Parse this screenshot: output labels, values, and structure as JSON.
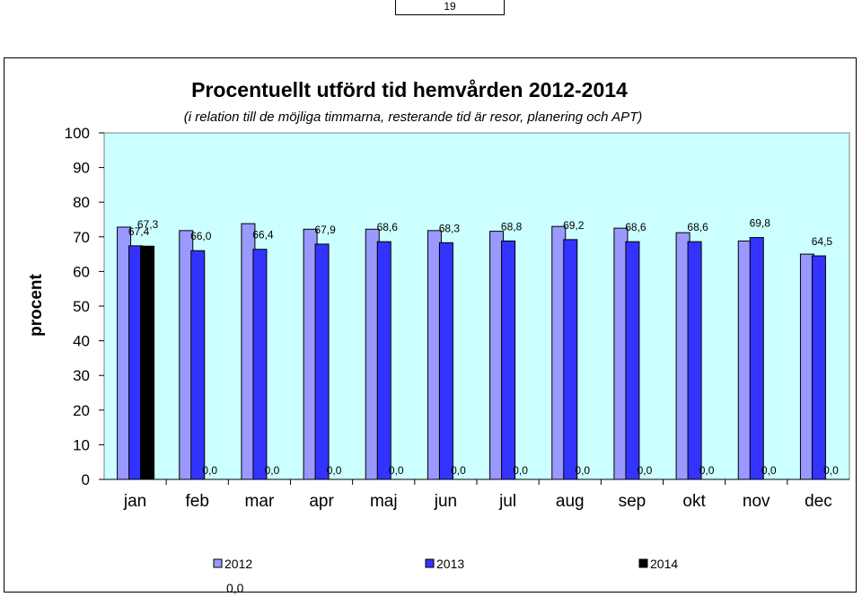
{
  "page_number": "19",
  "chart_data": {
    "type": "bar",
    "title": "Procentuellt utförd tid hemvården 2012-2014",
    "subtitle": "(i relation till de möjliga timmarna, resterande tid är resor, planering och APT)",
    "xlabel": "",
    "ylabel": "procent",
    "ylim": [
      0,
      100
    ],
    "yticks": [
      "0",
      "10",
      "20",
      "30",
      "40",
      "50",
      "60",
      "70",
      "80",
      "90",
      "100"
    ],
    "categories": [
      "jan",
      "feb",
      "mar",
      "apr",
      "maj",
      "jun",
      "jul",
      "aug",
      "sep",
      "okt",
      "nov",
      "dec"
    ],
    "grid": false,
    "legend_position": "bottom",
    "series": [
      {
        "name": "2012",
        "color": "#9999ff",
        "values": [
          72.8,
          71.8,
          73.8,
          72.2,
          72.2,
          71.8,
          71.6,
          73.0,
          72.5,
          71.2,
          68.8,
          65.0
        ]
      },
      {
        "name": "2013",
        "color": "#3333ff",
        "values": [
          67.4,
          66.0,
          66.4,
          67.9,
          68.6,
          68.3,
          68.8,
          69.2,
          68.6,
          68.6,
          69.8,
          64.5
        ]
      },
      {
        "name": "2014",
        "color": "#000000",
        "values": [
          67.3,
          0.0,
          0.0,
          0.0,
          0.0,
          0.0,
          0.0,
          0.0,
          0.0,
          0.0,
          0.0,
          0.0
        ]
      }
    ],
    "data_labels_2013": [
      "67,4",
      "66,0",
      "66,4",
      "67,9",
      "68,6",
      "68,3",
      "68,8",
      "69,2",
      "68,6",
      "68,6",
      "69,8",
      "64,5"
    ],
    "data_labels_2014": [
      "67,3",
      "0,0",
      "0,0",
      "0,0",
      "0,0",
      "0,0",
      "0,0",
      "0,0",
      "0,0",
      "0,0",
      "0,0",
      "0,0"
    ],
    "legend_extra_label": "0,0",
    "plot_background": "#ccffff"
  }
}
